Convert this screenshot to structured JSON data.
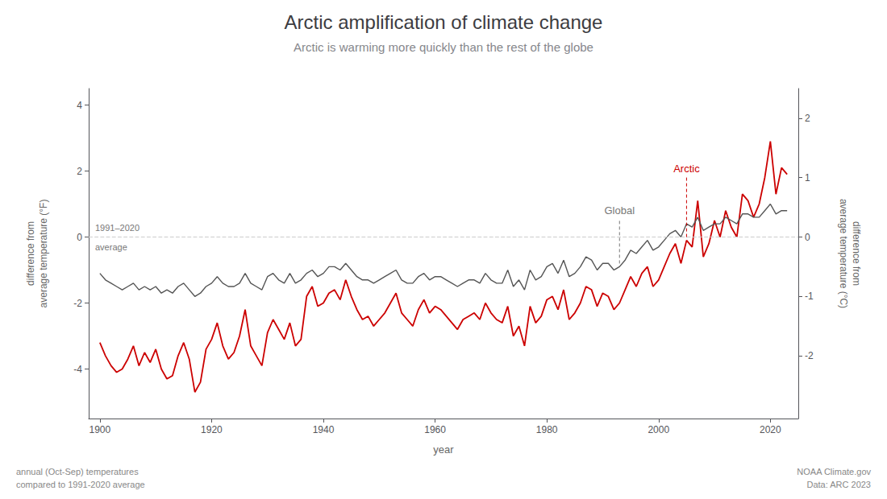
{
  "chart_data": {
    "type": "line",
    "title": "Arctic amplification of climate change",
    "subtitle": "Arctic is warming more quickly than the rest of the globe",
    "xlabel": "year",
    "ylabel": "difference from\naverage temperature (°F)",
    "y2label": "difference from\naverage temperature (°C)",
    "footnotes": [
      "annual (Oct-Sep) temperatures\ncompared to 1991-2020 average",
      "NOAA Climate.gov\nData: ARC 2023"
    ],
    "annotations": [
      {
        "text": "1991–2020\naverage",
        "y": 0
      },
      {
        "text": "Global",
        "x": 1993,
        "series": "Global"
      },
      {
        "text": "Arctic",
        "x": 2005,
        "series": "Arctic"
      }
    ],
    "grid": false,
    "xlim": [
      1898,
      2025
    ],
    "xticks": [
      1900,
      1920,
      1940,
      1960,
      1980,
      2000,
      2020
    ],
    "ylim": [
      -5.5,
      4.5
    ],
    "yticks": [
      -4,
      -2,
      0,
      2,
      4
    ],
    "y2lim": [
      -3.0555555555555554,
      2.5
    ],
    "y2ticks": [
      -2,
      -1,
      0,
      1,
      2
    ],
    "x": [
      1900,
      1901,
      1902,
      1903,
      1904,
      1905,
      1906,
      1907,
      1908,
      1909,
      1910,
      1911,
      1912,
      1913,
      1914,
      1915,
      1916,
      1917,
      1918,
      1919,
      1920,
      1921,
      1922,
      1923,
      1924,
      1925,
      1926,
      1927,
      1928,
      1929,
      1930,
      1931,
      1932,
      1933,
      1934,
      1935,
      1936,
      1937,
      1938,
      1939,
      1940,
      1941,
      1942,
      1943,
      1944,
      1945,
      1946,
      1947,
      1948,
      1949,
      1950,
      1951,
      1952,
      1953,
      1954,
      1955,
      1956,
      1957,
      1958,
      1959,
      1960,
      1961,
      1962,
      1963,
      1964,
      1965,
      1966,
      1967,
      1968,
      1969,
      1970,
      1971,
      1972,
      1973,
      1974,
      1975,
      1976,
      1977,
      1978,
      1979,
      1980,
      1981,
      1982,
      1983,
      1984,
      1985,
      1986,
      1987,
      1988,
      1989,
      1990,
      1991,
      1992,
      1993,
      1994,
      1995,
      1996,
      1997,
      1998,
      1999,
      2000,
      2001,
      2002,
      2003,
      2004,
      2005,
      2006,
      2007,
      2008,
      2009,
      2010,
      2011,
      2012,
      2013,
      2014,
      2015,
      2016,
      2017,
      2018,
      2019,
      2020,
      2021,
      2022,
      2023
    ],
    "series": [
      {
        "name": "Arctic",
        "color": "#cc0000",
        "values": [
          -3.2,
          -3.6,
          -3.9,
          -4.1,
          -4.0,
          -3.7,
          -3.3,
          -3.9,
          -3.5,
          -3.8,
          -3.4,
          -4.0,
          -4.3,
          -4.2,
          -3.6,
          -3.2,
          -3.7,
          -4.7,
          -4.4,
          -3.4,
          -3.1,
          -2.6,
          -3.3,
          -3.7,
          -3.5,
          -3.0,
          -2.2,
          -3.3,
          -3.6,
          -3.9,
          -2.9,
          -2.5,
          -2.8,
          -3.1,
          -2.6,
          -3.3,
          -3.1,
          -1.8,
          -1.5,
          -2.1,
          -2.0,
          -1.7,
          -1.6,
          -1.9,
          -1.3,
          -1.8,
          -2.2,
          -2.5,
          -2.4,
          -2.7,
          -2.5,
          -2.3,
          -2.0,
          -1.7,
          -2.3,
          -2.5,
          -2.7,
          -2.2,
          -1.9,
          -2.3,
          -2.1,
          -2.2,
          -2.4,
          -2.6,
          -2.8,
          -2.5,
          -2.4,
          -2.3,
          -2.5,
          -2.0,
          -2.3,
          -2.5,
          -2.6,
          -2.1,
          -3.0,
          -2.7,
          -3.3,
          -2.1,
          -2.6,
          -2.4,
          -1.9,
          -1.8,
          -2.2,
          -1.6,
          -2.5,
          -2.3,
          -2.0,
          -1.5,
          -1.6,
          -2.1,
          -1.7,
          -1.8,
          -2.2,
          -2.0,
          -1.6,
          -1.2,
          -1.5,
          -1.1,
          -0.9,
          -1.5,
          -1.3,
          -0.9,
          -0.5,
          -0.2,
          -0.8,
          -0.1,
          -0.3,
          1.1,
          -0.6,
          -0.2,
          0.5,
          0.0,
          0.8,
          0.3,
          0.0,
          1.3,
          1.1,
          0.6,
          1.0,
          1.8,
          2.9,
          1.3,
          2.1,
          1.9
        ]
      },
      {
        "name": "Global",
        "color": "#555555",
        "values": [
          -1.1,
          -1.3,
          -1.4,
          -1.5,
          -1.6,
          -1.5,
          -1.4,
          -1.6,
          -1.5,
          -1.6,
          -1.5,
          -1.7,
          -1.6,
          -1.7,
          -1.5,
          -1.4,
          -1.6,
          -1.8,
          -1.7,
          -1.5,
          -1.4,
          -1.2,
          -1.4,
          -1.5,
          -1.5,
          -1.4,
          -1.1,
          -1.4,
          -1.5,
          -1.6,
          -1.2,
          -1.1,
          -1.3,
          -1.4,
          -1.1,
          -1.4,
          -1.3,
          -1.1,
          -1.0,
          -1.2,
          -1.1,
          -0.9,
          -0.9,
          -1.0,
          -0.8,
          -1.0,
          -1.2,
          -1.3,
          -1.3,
          -1.4,
          -1.3,
          -1.2,
          -1.1,
          -1.0,
          -1.3,
          -1.4,
          -1.4,
          -1.2,
          -1.1,
          -1.3,
          -1.2,
          -1.2,
          -1.3,
          -1.4,
          -1.5,
          -1.4,
          -1.3,
          -1.3,
          -1.4,
          -1.1,
          -1.3,
          -1.4,
          -1.4,
          -1.0,
          -1.5,
          -1.3,
          -1.6,
          -1.0,
          -1.3,
          -1.2,
          -0.9,
          -0.8,
          -1.1,
          -0.7,
          -1.2,
          -1.1,
          -0.9,
          -0.6,
          -0.7,
          -1.0,
          -0.8,
          -0.8,
          -1.0,
          -0.9,
          -0.7,
          -0.4,
          -0.5,
          -0.3,
          -0.1,
          -0.4,
          -0.3,
          -0.1,
          0.1,
          0.2,
          0.0,
          0.4,
          0.3,
          0.6,
          0.2,
          0.3,
          0.4,
          0.4,
          0.6,
          0.5,
          0.4,
          0.7,
          0.7,
          0.6,
          0.6,
          0.8,
          1.0,
          0.7,
          0.8,
          0.8
        ]
      }
    ]
  }
}
